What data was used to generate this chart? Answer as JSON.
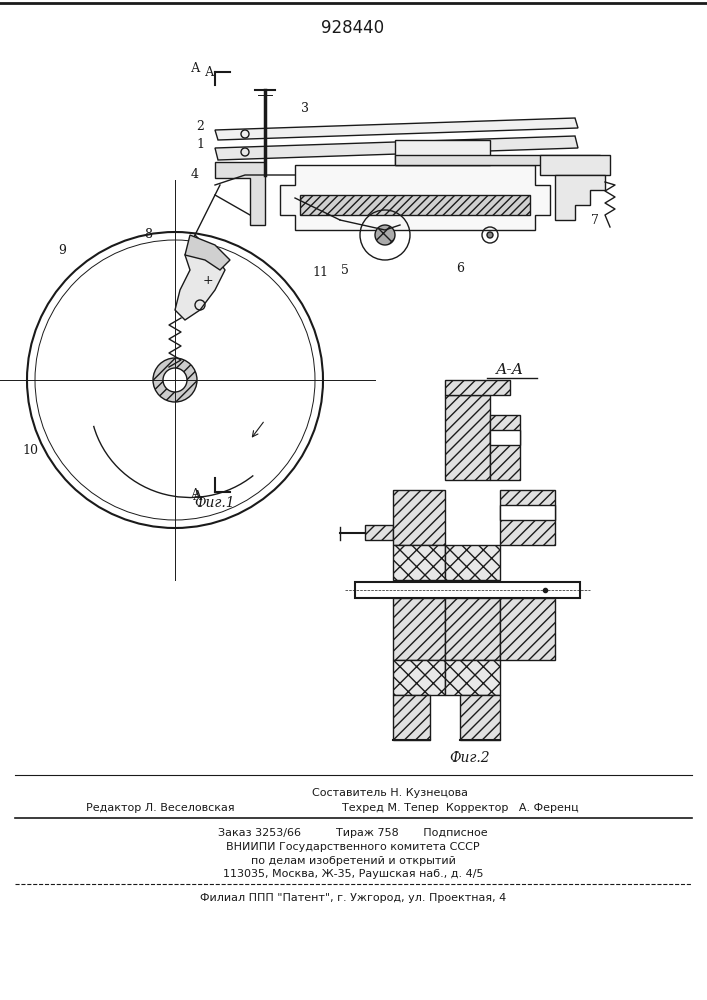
{
  "patent_number": "928440",
  "bg_color": "#ffffff",
  "line_color": "#1a1a1a",
  "fig1_label": "Фиг.1",
  "fig2_label": "Фиг.2",
  "section_label": "А-А",
  "footer_line1": "Составитель Н. Кузнецова",
  "footer_line2_left": "Редактор Л. Веселовская",
  "footer_line2_right": "Техред М. Тепер  Корректор   А. Ференц",
  "footer_line3": "Заказ 3253/66          Тираж 758       Подписное",
  "footer_line4": "ВНИИПИ Государственного комитета СССР",
  "footer_line5": "по делам изобретений и открытий",
  "footer_line6": "113035, Москва, Ж-35, Раушская наб., д. 4/5",
  "footer_line7": "Филиал ППП \"Патент\", г. Ужгород, ул. Проектная, 4"
}
